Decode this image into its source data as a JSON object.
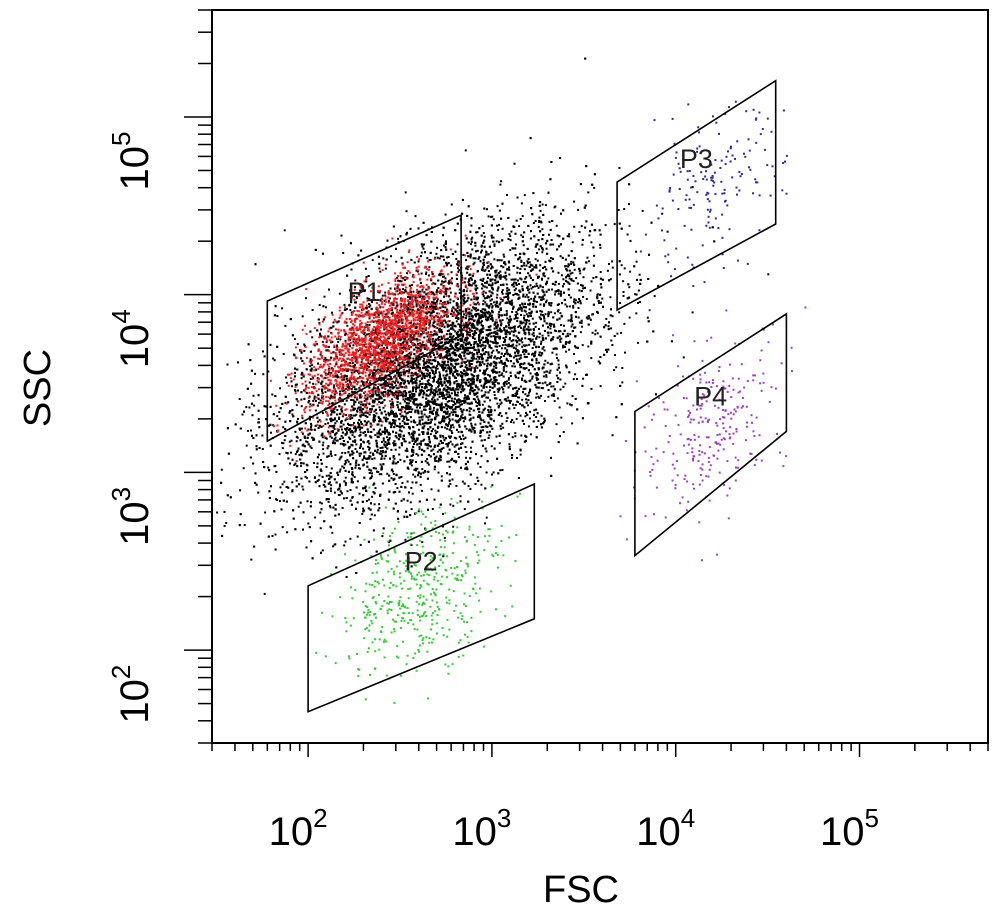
{
  "chart_data": {
    "type": "scatter",
    "title": "",
    "xlabel": "FSC",
    "ylabel": "SSC",
    "x_scale": "log",
    "y_scale": "log",
    "xlim": [
      30,
      500000
    ],
    "ylim": [
      30,
      400000
    ],
    "x_ticks": [
      {
        "value": 100,
        "mantissa": "10",
        "exponent": "2"
      },
      {
        "value": 1000,
        "mantissa": "10",
        "exponent": "3"
      },
      {
        "value": 10000,
        "mantissa": "10",
        "exponent": "4"
      },
      {
        "value": 100000,
        "mantissa": "10",
        "exponent": "5"
      }
    ],
    "y_ticks": [
      {
        "value": 100,
        "mantissa": "10",
        "exponent": "2"
      },
      {
        "value": 1000,
        "mantissa": "10",
        "exponent": "3"
      },
      {
        "value": 10000,
        "mantissa": "10",
        "exponent": "4"
      },
      {
        "value": 100000,
        "mantissa": "10",
        "exponent": "5"
      }
    ],
    "grid": false,
    "legend": "none",
    "colors": {
      "events": "#000000",
      "P1": "#ff1a1a",
      "P2": "#33cc33",
      "P3": "#2b2b9e",
      "P4": "#a040c8",
      "gate_outline": "#000000"
    },
    "gates": [
      {
        "name": "P1",
        "vertices": [
          [
            60,
            9200
          ],
          [
            680,
            28000
          ],
          [
            680,
            5900
          ],
          [
            60,
            1500
          ]
        ]
      },
      {
        "name": "P2",
        "vertices": [
          [
            100,
            230
          ],
          [
            1700,
            860
          ],
          [
            1700,
            150
          ],
          [
            100,
            45
          ]
        ]
      },
      {
        "name": "P3",
        "vertices": [
          [
            4800,
            43000
          ],
          [
            35000,
            160000
          ],
          [
            35000,
            25000
          ],
          [
            4800,
            8200
          ]
        ]
      },
      {
        "name": "P4",
        "vertices": [
          [
            6000,
            2200
          ],
          [
            40000,
            7800
          ],
          [
            40000,
            1700
          ],
          [
            6000,
            340
          ]
        ]
      }
    ],
    "populations": [
      {
        "name": "main",
        "color_key": "events",
        "count": 9000,
        "center": [
          500,
          4000
        ],
        "spread_log10": [
          0.42,
          0.32
        ],
        "slope": 0.45
      },
      {
        "name": "P1",
        "color_key": "P1",
        "count": 1600,
        "center": [
          240,
          5500
        ],
        "spread_log10": [
          0.2,
          0.15
        ],
        "slope": 0.6
      },
      {
        "name": "P2",
        "color_key": "P2",
        "count": 450,
        "center": [
          400,
          230
        ],
        "spread_log10": [
          0.22,
          0.22
        ],
        "slope": 0.4
      },
      {
        "name": "P3",
        "color_key": "P3",
        "count": 160,
        "center": [
          15000,
          38000
        ],
        "spread_log10": [
          0.2,
          0.2
        ],
        "slope": 0.55
      },
      {
        "name": "P4",
        "color_key": "P4",
        "count": 260,
        "center": [
          16000,
          1900
        ],
        "spread_log10": [
          0.2,
          0.22
        ],
        "slope": 0.55
      }
    ]
  }
}
